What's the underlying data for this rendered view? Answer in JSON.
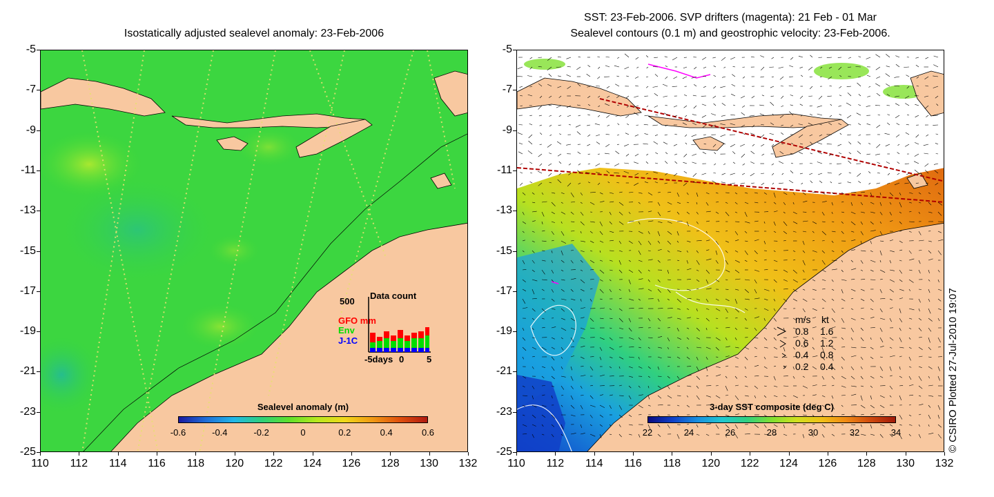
{
  "left_panel": {
    "title": "Isostatically adjusted sealevel anomaly: 23-Feb-2006",
    "colorbar": {
      "label": "Sealevel anomaly (m)",
      "ticks": [
        "-0.6",
        "-0.4",
        "-0.2",
        "0",
        "0.2",
        "0.4",
        "0.6"
      ],
      "colors": [
        "#1a1aa0",
        "#1f6fd8",
        "#21b8e8",
        "#2ed07a",
        "#5fe02a",
        "#b8e81e",
        "#f0d81a",
        "#f09a14",
        "#e0500e",
        "#b01a10"
      ]
    },
    "inset": {
      "title": "Data count",
      "ymax_label": "500",
      "series": [
        "GFO mm",
        "Env",
        "J-1C"
      ],
      "series_colors": [
        "#ff0000",
        "#00dd00",
        "#0000ff"
      ],
      "x_labels": [
        "-5days",
        "0",
        "5"
      ]
    }
  },
  "right_panel": {
    "title_line1": "SST: 23-Feb-2006. SVP drifters (magenta): 21 Feb - 01 Mar",
    "title_line2": "Sealevel contours (0.1 m) and geostrophic velocity: 23-Feb-2006.",
    "colorbar": {
      "label": "3-day SST composite (deg C)",
      "ticks": [
        "22",
        "24",
        "26",
        "28",
        "30",
        "32",
        "34"
      ],
      "colors": [
        "#0a0a80",
        "#1040c8",
        "#1a90e0",
        "#20c8d0",
        "#30d080",
        "#80e030",
        "#d0e020",
        "#f0c018",
        "#f08a14",
        "#d04a0e",
        "#a01a0a"
      ]
    },
    "legend": {
      "header_ms": "m/s",
      "header_kt": "kt",
      "rows": [
        {
          "ms": "0.8",
          "kt": "1.6"
        },
        {
          "ms": "0.6",
          "kt": "1.2"
        },
        {
          "ms": "0.4",
          "kt": "0.8"
        },
        {
          "ms": "0.2",
          "kt": "0.4"
        }
      ]
    }
  },
  "axes": {
    "lat_ticks": [
      "-5",
      "-7",
      "-9",
      "-11",
      "-13",
      "-15",
      "-17",
      "-19",
      "-21",
      "-23",
      "-25"
    ],
    "lon_ticks": [
      "110",
      "112",
      "114",
      "116",
      "118",
      "120",
      "122",
      "124",
      "126",
      "128",
      "130",
      "132"
    ]
  },
  "credit": "© CSIRO Plotted 27-Jul-2010 19:07",
  "colors": {
    "land": "#f8c8a0",
    "ocean_green": "#36d838",
    "white_no_data": "#ffffff"
  }
}
